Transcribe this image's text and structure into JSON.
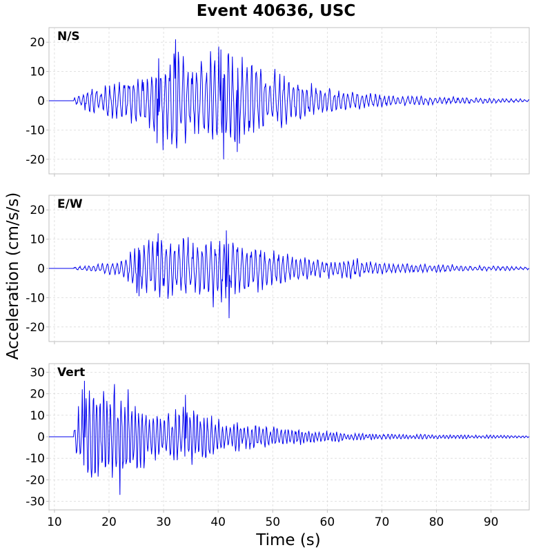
{
  "chart_data": {
    "type": "line",
    "title": "Event 40636, USC",
    "xlabel": "Time (s)",
    "ylabel": "Acceleration (cm/s/s)",
    "xlim": [
      9,
      97
    ],
    "xticks": [
      10,
      20,
      30,
      40,
      50,
      60,
      70,
      80,
      90
    ],
    "grid": true,
    "line_color": "#0000ee",
    "panels": [
      {
        "label": "N/S",
        "ylim": [
          -25,
          25
        ],
        "yticks": [
          -20,
          -10,
          0,
          10,
          20
        ],
        "onset": 13.5,
        "peak_envelope": [
          [
            13.5,
            1
          ],
          [
            16,
            4
          ],
          [
            20,
            6
          ],
          [
            25,
            10
          ],
          [
            30,
            16
          ],
          [
            32,
            21
          ],
          [
            35,
            15
          ],
          [
            40,
            19
          ],
          [
            43,
            17
          ],
          [
            47,
            14
          ],
          [
            52,
            10
          ],
          [
            57,
            6
          ],
          [
            62,
            4
          ],
          [
            67,
            3
          ],
          [
            72,
            2
          ],
          [
            80,
            1.5
          ],
          [
            90,
            1
          ],
          [
            97,
            0.5
          ]
        ],
        "notable_peaks": [
          [
            32.2,
            21
          ],
          [
            41.0,
            -20
          ],
          [
            40.5,
            17.5
          ],
          [
            43.5,
            -17.5
          ],
          [
            29.1,
            14.5
          ],
          [
            28.8,
            -14.5
          ]
        ]
      },
      {
        "label": "E/W",
        "ylim": [
          -25,
          25
        ],
        "yticks": [
          -20,
          -10,
          0,
          10,
          20
        ],
        "onset": 13.5,
        "peak_envelope": [
          [
            13.5,
            0.5
          ],
          [
            18,
            1.5
          ],
          [
            23,
            3
          ],
          [
            25,
            10
          ],
          [
            30,
            11
          ],
          [
            35,
            11
          ],
          [
            40,
            13
          ],
          [
            43,
            11
          ],
          [
            47,
            8
          ],
          [
            52,
            6
          ],
          [
            57,
            4
          ],
          [
            62,
            3.5
          ],
          [
            65,
            4
          ],
          [
            70,
            2
          ],
          [
            80,
            1.5
          ],
          [
            90,
            1
          ],
          [
            97,
            0.5
          ]
        ],
        "notable_peaks": [
          [
            42.0,
            -17
          ],
          [
            41.5,
            13
          ],
          [
            25.5,
            -9.5
          ],
          [
            29.0,
            12
          ]
        ]
      },
      {
        "label": "Vert",
        "ylim": [
          -34,
          34
        ],
        "yticks": [
          -30,
          -20,
          -10,
          0,
          10,
          20,
          30
        ],
        "onset": 13.5,
        "peak_envelope": [
          [
            13.5,
            4
          ],
          [
            15,
            22
          ],
          [
            18,
            24
          ],
          [
            20,
            21
          ],
          [
            22,
            29
          ],
          [
            25,
            18
          ],
          [
            30,
            13
          ],
          [
            35,
            14
          ],
          [
            40,
            9
          ],
          [
            45,
            7
          ],
          [
            50,
            5
          ],
          [
            55,
            4
          ],
          [
            60,
            3
          ],
          [
            65,
            1.8
          ],
          [
            75,
            1.2
          ],
          [
            85,
            1
          ],
          [
            97,
            0.6
          ]
        ],
        "notable_peaks": [
          [
            22.0,
            29
          ],
          [
            22.0,
            -27
          ],
          [
            15.5,
            26
          ],
          [
            34.0,
            19.5
          ]
        ]
      }
    ]
  }
}
